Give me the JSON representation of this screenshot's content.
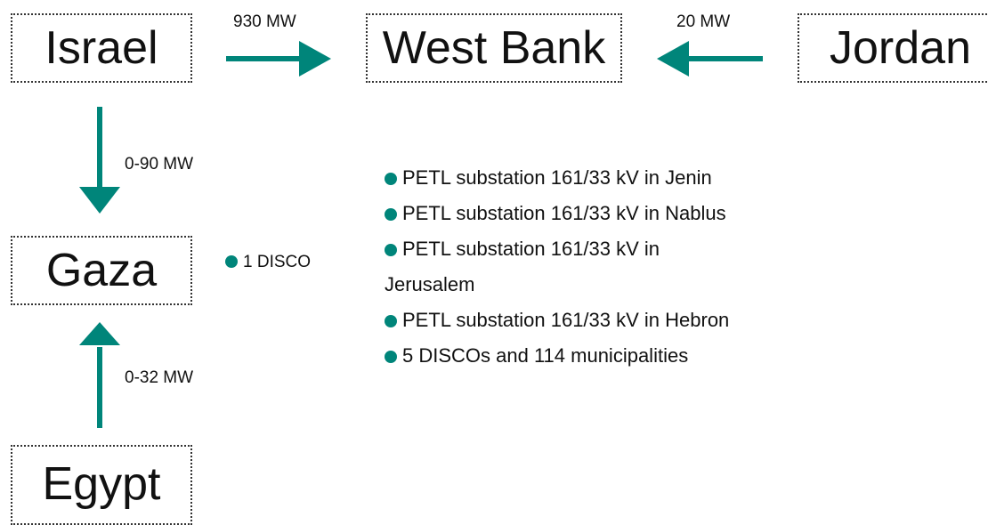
{
  "nodes": [
    {
      "label": "Israel"
    },
    {
      "label": "West Bank"
    },
    {
      "label": "Jordan"
    },
    {
      "label": "Gaza"
    },
    {
      "label": "Egypt"
    }
  ],
  "edges": [
    {
      "label": "930 MW"
    },
    {
      "label": "20 MW"
    },
    {
      "label": "0-90 MW"
    },
    {
      "label": "0-32 MW"
    }
  ],
  "gaza_items": [
    "1 DISCO"
  ],
  "west_bank_items": [
    "PETL substation 161/33 kV in Jenin",
    "PETL substation 161/33 kV in Nablus",
    "PETL substation 161/33 kV in Jerusalem",
    "PETL substation 161/33 kV in Hebron",
    "5 DISCOs and 114 municipalities"
  ]
}
